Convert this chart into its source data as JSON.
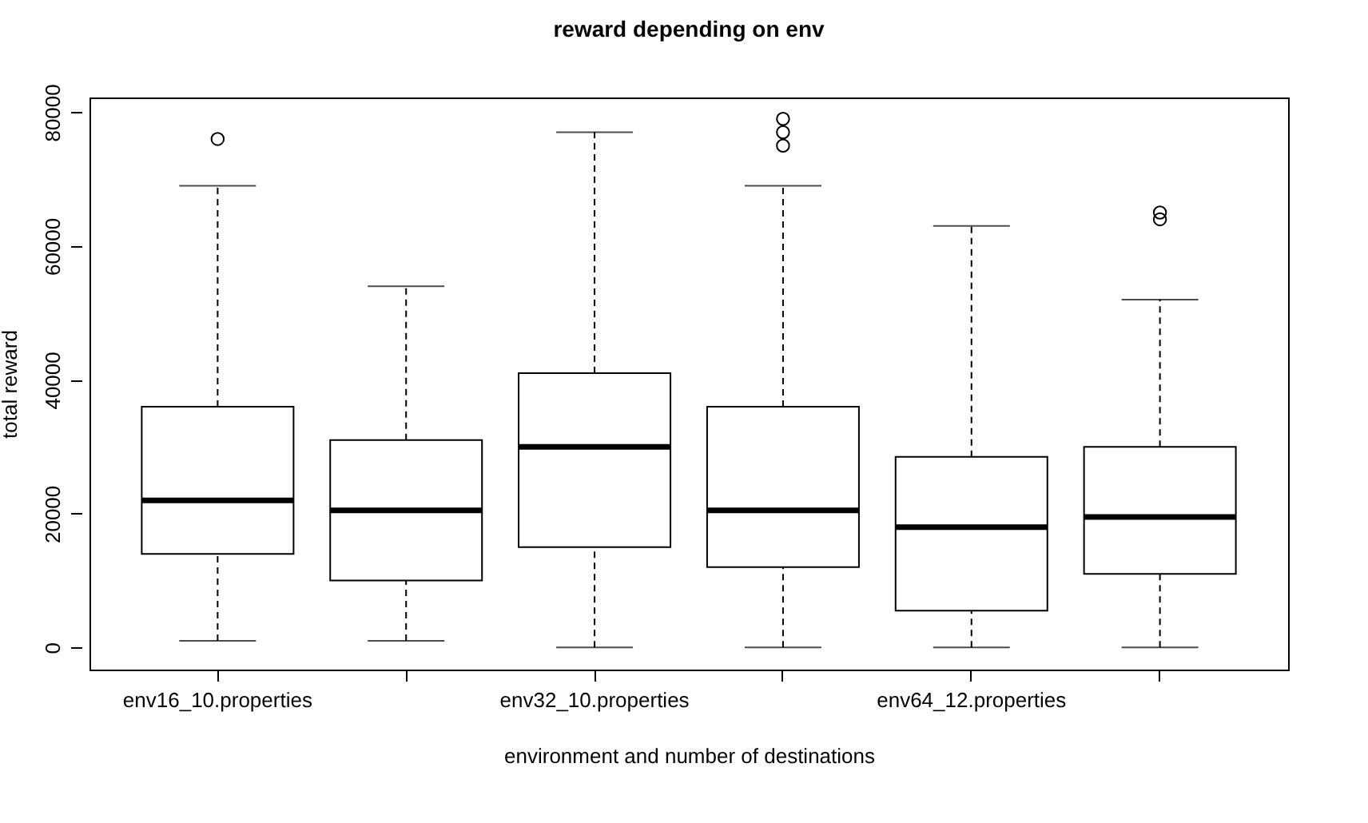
{
  "chart_data": {
    "type": "box",
    "title": "reward depending on env",
    "xlabel": "environment and number of destinations",
    "ylabel": "total reward",
    "categories": [
      "env16_10.properties",
      null,
      "env32_10.properties",
      null,
      "env64_12.properties",
      null
    ],
    "boxes": [
      {
        "low": 1000,
        "q1": 14000,
        "median": 22000,
        "q3": 36000,
        "high": 69000,
        "outliers": [
          76000
        ]
      },
      {
        "low": 1000,
        "q1": 10000,
        "median": 20500,
        "q3": 31000,
        "high": 54000
      },
      {
        "low": 0,
        "q1": 15000,
        "median": 30000,
        "q3": 41000,
        "high": 77000
      },
      {
        "low": 0,
        "q1": 12000,
        "median": 20500,
        "q3": 36000,
        "high": 69000,
        "outliers": [
          79000,
          77000,
          75000
        ]
      },
      {
        "low": 0,
        "q1": 5500,
        "median": 18000,
        "q3": 28500,
        "high": 63000
      },
      {
        "low": 0,
        "q1": 11000,
        "median": 19500,
        "q3": 30000,
        "high": 52000,
        "outliers": [
          65000,
          64000
        ]
      }
    ],
    "ylim": [
      -3300,
      82200
    ],
    "yticks": [
      0,
      20000,
      40000,
      60000,
      80000
    ]
  }
}
